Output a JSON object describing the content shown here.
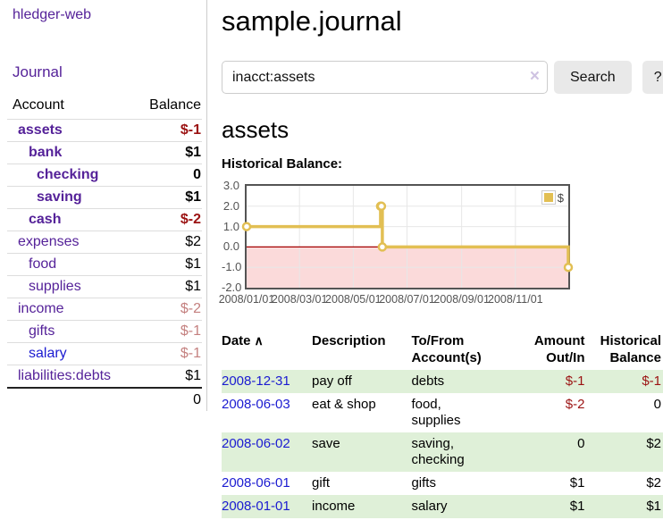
{
  "app": {
    "brand": "hledger-web"
  },
  "sidebar": {
    "journal_link": "Journal",
    "accounts_table": {
      "headers": {
        "account": "Account",
        "balance": "Balance"
      },
      "rows": [
        {
          "name": "assets",
          "balance": "$-1",
          "level": 1,
          "bold": true,
          "balance_style": "neg-strong"
        },
        {
          "name": "bank",
          "balance": "$1",
          "level": 2,
          "bold": true,
          "balance_style": ""
        },
        {
          "name": "checking",
          "balance": "0",
          "level": 3,
          "bold": true,
          "balance_style": ""
        },
        {
          "name": "saving",
          "balance": "$1",
          "level": 3,
          "bold": true,
          "balance_style": ""
        },
        {
          "name": "cash",
          "balance": "$-2",
          "level": 2,
          "bold": true,
          "balance_style": "neg-strong"
        },
        {
          "name": "expenses",
          "balance": "$2",
          "level": 1,
          "bold": false,
          "balance_style": ""
        },
        {
          "name": "food",
          "balance": "$1",
          "level": 2,
          "bold": false,
          "balance_style": ""
        },
        {
          "name": "supplies",
          "balance": "$1",
          "level": 2,
          "bold": false,
          "balance_style": ""
        },
        {
          "name": "income",
          "balance": "$-2",
          "level": 1,
          "bold": false,
          "balance_style": "neg-faint"
        },
        {
          "name": "gifts",
          "balance": "$-1",
          "level": 2,
          "bold": false,
          "balance_style": "neg-faint"
        },
        {
          "name": "salary",
          "balance": "$-1",
          "level": 2,
          "bold": false,
          "balance_style": "neg-faint",
          "link_color": "blue"
        },
        {
          "name": "liabilities:debts",
          "balance": "$1",
          "level": 1,
          "bold": false,
          "balance_style": ""
        }
      ],
      "total": "0"
    }
  },
  "header": {
    "title": "sample.journal"
  },
  "search": {
    "value": "inacct:assets",
    "clear_icon": "×",
    "button_label": "Search",
    "help_label": "?"
  },
  "account_page": {
    "heading": "assets",
    "chart_title": "Historical Balance:"
  },
  "chart_data": {
    "type": "line",
    "step": true,
    "title": "Historical Balance:",
    "legend": {
      "label": "$",
      "position": "top-right"
    },
    "x": [
      "2008-01-01",
      "2008-06-01",
      "2008-06-02",
      "2008-06-03",
      "2008-12-31"
    ],
    "series": [
      {
        "name": "$",
        "values": [
          1.0,
          2.0,
          2.0,
          0.0,
          -1.0
        ]
      }
    ],
    "x_range": [
      "2008-01-01",
      "2008-12-31"
    ],
    "ylim": [
      -2.0,
      3.0
    ],
    "y_ticks": [
      3.0,
      2.0,
      1.0,
      0.0,
      -1.0,
      -2.0
    ],
    "x_ticks": [
      "2008/01/01",
      "2008/03/01",
      "2008/05/01",
      "2008/07/01",
      "2008/09/01",
      "2008/11/01"
    ],
    "grid": true,
    "line_color": "#e2bf53",
    "marker_fill": "#ffffff",
    "negative_region_color": "#fbdada",
    "zero_line_color": "#a40000",
    "grid_color": "#e7e7e7",
    "border_color": "#545454"
  },
  "register_table": {
    "headers": {
      "date": "Date",
      "sort_icon": "∧",
      "description": "Description",
      "accounts": "To/From Account(s)",
      "amount": "Amount Out/In",
      "balance": "Historical Balance"
    },
    "rows": [
      {
        "date": "2008-12-31",
        "description": "pay off",
        "accounts": "debts",
        "amount": "$-1",
        "amount_neg": true,
        "balance": "$-1",
        "balance_neg": true,
        "striped": true
      },
      {
        "date": "2008-06-03",
        "description": "eat & shop",
        "accounts": "food, supplies",
        "amount": "$-2",
        "amount_neg": true,
        "balance": "0",
        "balance_neg": false,
        "striped": false
      },
      {
        "date": "2008-06-02",
        "description": "save",
        "accounts": "saving, checking",
        "amount": "0",
        "amount_neg": false,
        "balance": "$2",
        "balance_neg": false,
        "striped": true
      },
      {
        "date": "2008-06-01",
        "description": "gift",
        "accounts": "gifts",
        "amount": "$1",
        "amount_neg": false,
        "balance": "$2",
        "balance_neg": false,
        "striped": false
      },
      {
        "date": "2008-01-01",
        "description": "income",
        "accounts": "salary",
        "amount": "$1",
        "amount_neg": false,
        "balance": "$1",
        "balance_neg": false,
        "striped": true
      }
    ]
  }
}
